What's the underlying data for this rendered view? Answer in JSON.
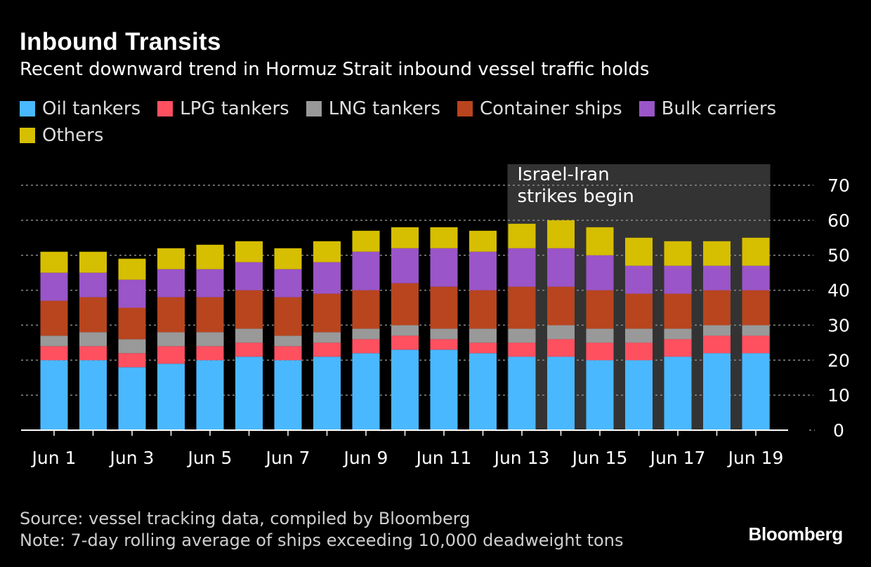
{
  "header": {
    "title": "Inbound Transits",
    "subtitle": "Recent downward trend in Hormuz Strait inbound vessel traffic holds"
  },
  "chart_data": {
    "type": "bar",
    "stacked": true,
    "title": "Inbound Transits",
    "subtitle": "Recent downward trend in Hormuz Strait inbound vessel traffic holds",
    "categories": [
      "Jun 1",
      "Jun 2",
      "Jun 3",
      "Jun 4",
      "Jun 5",
      "Jun 6",
      "Jun 7",
      "Jun 8",
      "Jun 9",
      "Jun 10",
      "Jun 11",
      "Jun 12",
      "Jun 13",
      "Jun 14",
      "Jun 15",
      "Jun 16",
      "Jun 17",
      "Jun 18",
      "Jun 19"
    ],
    "tick_labels": [
      "Jun 1",
      "Jun 3",
      "Jun 5",
      "Jun 7",
      "Jun 9",
      "Jun 11",
      "Jun 13",
      "Jun 15",
      "Jun 17",
      "Jun 19"
    ],
    "series": [
      {
        "name": "Oil tankers",
        "color": "#4ab8ff",
        "values": [
          20,
          20,
          18,
          19,
          20,
          21,
          20,
          21,
          22,
          23,
          23,
          22,
          21,
          21,
          20,
          20,
          21,
          22,
          22
        ]
      },
      {
        "name": "LPG tankers",
        "color": "#ff5060",
        "values": [
          4,
          4,
          4,
          5,
          4,
          4,
          4,
          4,
          4,
          4,
          3,
          3,
          4,
          5,
          5,
          5,
          5,
          5,
          5
        ]
      },
      {
        "name": "LNG tankers",
        "color": "#999999",
        "values": [
          3,
          4,
          4,
          4,
          4,
          4,
          3,
          3,
          3,
          3,
          3,
          4,
          4,
          4,
          4,
          4,
          3,
          3,
          3
        ]
      },
      {
        "name": "Container ships",
        "color": "#b8451e",
        "values": [
          10,
          10,
          9,
          10,
          10,
          11,
          11,
          11,
          11,
          12,
          12,
          11,
          12,
          11,
          11,
          10,
          10,
          10,
          10
        ]
      },
      {
        "name": "Bulk carriers",
        "color": "#9a55c8",
        "values": [
          8,
          7,
          8,
          8,
          8,
          8,
          8,
          9,
          11,
          10,
          11,
          11,
          11,
          11,
          10,
          8,
          8,
          7,
          7
        ]
      },
      {
        "name": "Others",
        "color": "#d6be00",
        "values": [
          6,
          6,
          6,
          6,
          7,
          6,
          6,
          6,
          6,
          6,
          6,
          6,
          7,
          8,
          8,
          8,
          7,
          7,
          8
        ]
      }
    ],
    "ylim": [
      0,
      70
    ],
    "yticks": [
      0,
      10,
      20,
      30,
      40,
      50,
      60,
      70
    ],
    "y_axis_side": "right",
    "grid": true,
    "annotation": {
      "lines": [
        "Israel-Iran",
        "strikes begin"
      ],
      "from_category": "Jun 13",
      "to_category": "Jun 19",
      "color": "#333333"
    }
  },
  "footer": {
    "source": "Source: vessel tracking data, compiled by Bloomberg",
    "note": "Note: 7-day rolling average of ships exceeding 10,000 deadweight tons",
    "brand": "Bloomberg"
  }
}
